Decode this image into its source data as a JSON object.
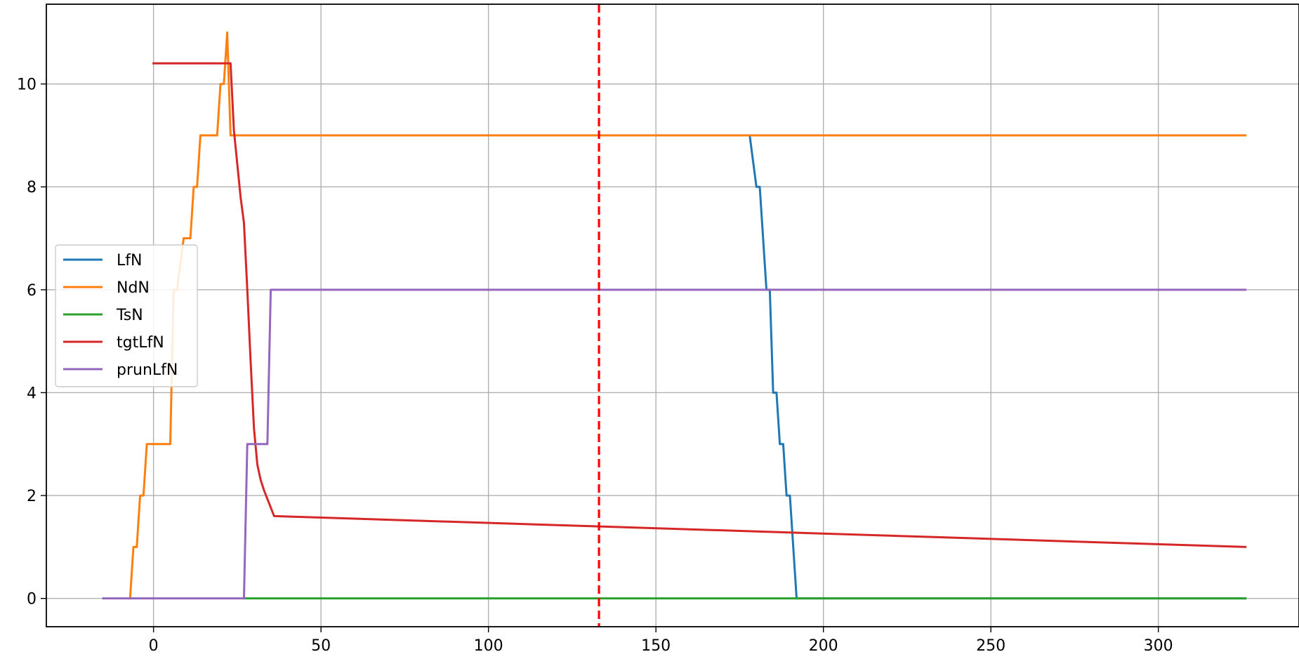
{
  "chart_data": {
    "type": "line",
    "title": "",
    "xlabel": "",
    "ylabel": "",
    "xlim": [
      -32,
      342
    ],
    "ylim": [
      -0.55,
      11.55
    ],
    "xticks": [
      0,
      50,
      100,
      150,
      200,
      250,
      300
    ],
    "yticks": [
      0,
      2,
      4,
      6,
      8,
      10
    ],
    "grid": true,
    "legend_position": "center-left",
    "vline": {
      "x": 133,
      "color": "#ff0000",
      "style": "dashed"
    },
    "series": [
      {
        "name": "LfN",
        "color": "#1f77b4",
        "points": [
          [
            178,
            9
          ],
          [
            180,
            8
          ],
          [
            181,
            8
          ],
          [
            183,
            6
          ],
          [
            184,
            6
          ],
          [
            185,
            4
          ],
          [
            186,
            4
          ],
          [
            187,
            3
          ],
          [
            188,
            3
          ],
          [
            189,
            2
          ],
          [
            190,
            2
          ],
          [
            192,
            0
          ],
          [
            326,
            0
          ]
        ]
      },
      {
        "name": "NdN",
        "color": "#ff7f0e",
        "points": [
          [
            -7,
            0
          ],
          [
            -6,
            1
          ],
          [
            -5,
            1
          ],
          [
            -4,
            2
          ],
          [
            -3,
            2
          ],
          [
            -2,
            3
          ],
          [
            5,
            3
          ],
          [
            6,
            6
          ],
          [
            7,
            6
          ],
          [
            9,
            7
          ],
          [
            11,
            7
          ],
          [
            12,
            8
          ],
          [
            13,
            8
          ],
          [
            14,
            9
          ],
          [
            19,
            9
          ],
          [
            20,
            10
          ],
          [
            21,
            10
          ],
          [
            22,
            11
          ],
          [
            23,
            9
          ],
          [
            326,
            9
          ]
        ]
      },
      {
        "name": "TsN",
        "color": "#2ca02c",
        "points": [
          [
            27,
            0
          ],
          [
            326,
            0
          ]
        ]
      },
      {
        "name": "tgtLfN",
        "color": "#d62728",
        "points": [
          [
            0,
            10.4
          ],
          [
            23,
            10.4
          ],
          [
            24,
            9.1
          ],
          [
            26,
            7.8
          ],
          [
            27,
            7.3
          ],
          [
            28,
            6.0
          ],
          [
            29,
            4.6
          ],
          [
            30,
            3.3
          ],
          [
            31,
            2.6
          ],
          [
            32,
            2.3
          ],
          [
            33,
            2.1
          ],
          [
            36,
            1.6
          ],
          [
            326,
            1.0
          ]
        ]
      },
      {
        "name": "prunLfN",
        "color": "#9467bd",
        "points": [
          [
            -15,
            0
          ],
          [
            27,
            0
          ],
          [
            28,
            3
          ],
          [
            34,
            3
          ],
          [
            35,
            6
          ],
          [
            326,
            6
          ]
        ]
      }
    ]
  }
}
